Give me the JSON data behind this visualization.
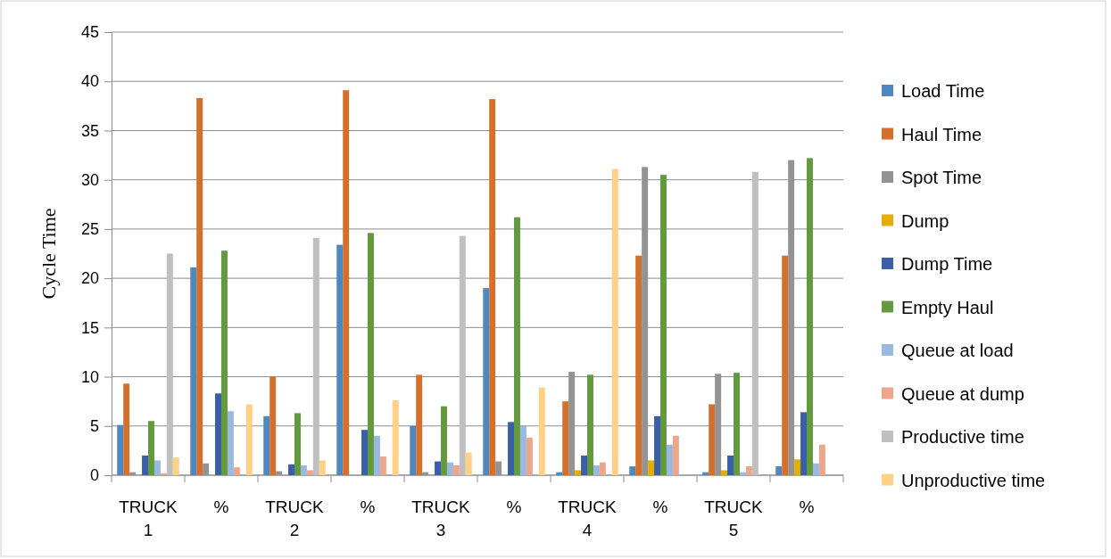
{
  "chart_data": {
    "type": "bar",
    "ylabel": "Cycle Time",
    "categories": [
      "TRUCK 1",
      "%",
      "TRUCK 2",
      "%",
      "TRUCK 3",
      "%",
      "TRUCK 4",
      "%",
      "TRUCK 5",
      "%"
    ],
    "ylim": [
      0,
      45
    ],
    "yticks": [
      0,
      5,
      10,
      15,
      20,
      25,
      30,
      35,
      40,
      45
    ],
    "grid": "y",
    "legend": "right",
    "series": [
      {
        "name": "Load Time",
        "color": "#4e88c0",
        "values": [
          5.1,
          21.1,
          6.0,
          23.4,
          5.0,
          19.0,
          0.3,
          0.9,
          0.3,
          0.9
        ]
      },
      {
        "name": "Haul Time",
        "color": "#d4702b",
        "values": [
          9.3,
          38.3,
          10.0,
          39.1,
          10.2,
          38.2,
          7.5,
          22.3,
          7.2,
          22.3
        ]
      },
      {
        "name": "Spot Time",
        "color": "#939393",
        "values": [
          0.3,
          1.2,
          0.4,
          null,
          0.3,
          1.4,
          10.5,
          31.3,
          10.3,
          32.0
        ]
      },
      {
        "name": "Dump",
        "color": "#e5ad00",
        "values": [
          null,
          null,
          null,
          null,
          null,
          null,
          0.5,
          1.5,
          0.5,
          1.6
        ]
      },
      {
        "name": "Dump Time",
        "color": "#3b5ea8",
        "values": [
          2.0,
          8.3,
          1.1,
          4.6,
          1.4,
          5.4,
          2.0,
          6.0,
          2.0,
          6.4
        ]
      },
      {
        "name": "Empty Haul",
        "color": "#629a3d",
        "values": [
          5.5,
          22.8,
          6.3,
          24.6,
          7.0,
          26.2,
          10.2,
          30.5,
          10.4,
          32.2
        ]
      },
      {
        "name": "Queue at load",
        "color": "#99b9e0",
        "values": [
          1.5,
          6.5,
          1.0,
          4.0,
          1.3,
          5.0,
          1.0,
          3.1,
          0.3,
          1.2
        ]
      },
      {
        "name": "Queue at dump",
        "color": "#eea68a",
        "values": [
          0.2,
          0.8,
          0.5,
          1.9,
          1.0,
          3.8,
          1.3,
          4.0,
          0.9,
          3.1
        ]
      },
      {
        "name": "Productive time",
        "color": "#bfbfbf",
        "values": [
          22.5,
          null,
          24.1,
          null,
          24.3,
          null,
          null,
          null,
          30.8,
          null
        ]
      },
      {
        "name": "Unproductive time",
        "color": "#ffd186",
        "values": [
          1.8,
          7.2,
          1.5,
          7.6,
          2.3,
          8.9,
          31.1,
          null,
          null,
          null
        ]
      }
    ]
  }
}
